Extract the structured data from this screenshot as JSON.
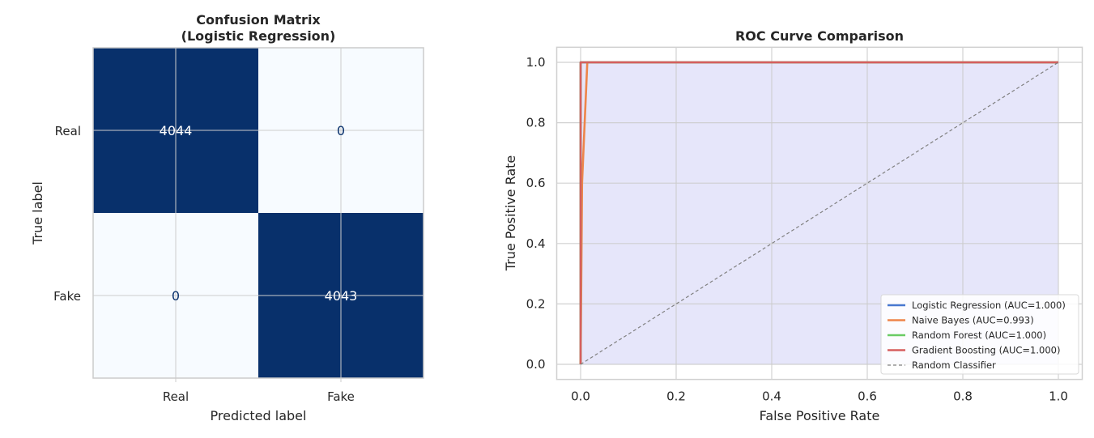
{
  "chart_data": [
    {
      "type": "heatmap",
      "title": "Confusion Matrix\n(Logistic Regression)",
      "title_lines": [
        "Confusion Matrix",
        "(Logistic Regression)"
      ],
      "xlabel": "Predicted label",
      "ylabel": "True label",
      "x_categories": [
        "Real",
        "Fake"
      ],
      "y_categories": [
        "Real",
        "Fake"
      ],
      "values": [
        [
          4044,
          0
        ],
        [
          0,
          4043
        ]
      ],
      "colormap": {
        "low": "#f7fbff",
        "high": "#08306b",
        "text_on_high": "#ffffff",
        "text_on_low": "#08306b"
      }
    },
    {
      "type": "line",
      "title": "ROC Curve Comparison",
      "xlabel": "False Positive Rate",
      "ylabel": "True Positive Rate",
      "xlim": [
        -0.05,
        1.05
      ],
      "ylim": [
        -0.05,
        1.05
      ],
      "xticks": [
        "0.0",
        "0.2",
        "0.4",
        "0.6",
        "0.8",
        "1.0"
      ],
      "yticks": [
        "0.0",
        "0.2",
        "0.4",
        "0.6",
        "0.8",
        "1.0"
      ],
      "grid": true,
      "legend_position": "lower-right",
      "series": [
        {
          "name": "Logistic Regression (AUC=1.000)",
          "color": "#4878d0",
          "x": [
            0,
            0,
            1
          ],
          "y": [
            0,
            1,
            1
          ]
        },
        {
          "name": "Naive Bayes (AUC=0.993)",
          "color": "#ee854a",
          "x": [
            0,
            0.003,
            0.014,
            1
          ],
          "y": [
            0,
            0.6,
            1,
            1
          ]
        },
        {
          "name": "Random Forest (AUC=1.000)",
          "color": "#6acc64",
          "x": [
            0,
            0,
            1
          ],
          "y": [
            0,
            1,
            1
          ]
        },
        {
          "name": "Gradient Boosting (AUC=1.000)",
          "color": "#d65f5f",
          "x": [
            0,
            0,
            1
          ],
          "y": [
            0,
            1,
            1
          ]
        },
        {
          "name": "Random Classifier",
          "color": "#808080",
          "dashed": true,
          "x": [
            0,
            1
          ],
          "y": [
            0,
            1
          ]
        }
      ],
      "fill_color": "#e6e6fa"
    }
  ]
}
